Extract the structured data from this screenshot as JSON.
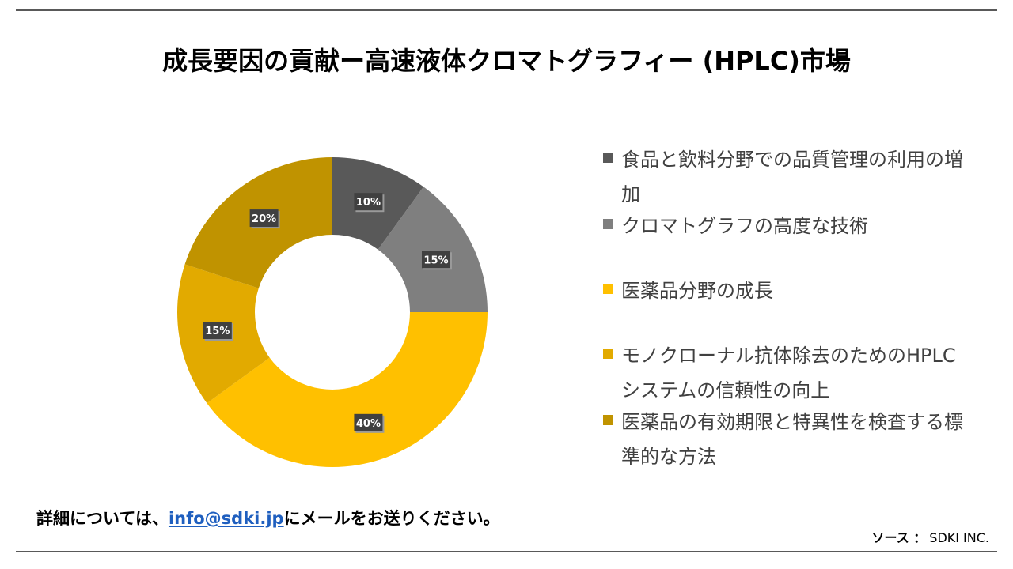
{
  "title": "成長要因の貢献ー高速液体クロマトグラフィー (HPLC)市場",
  "chart_data": {
    "type": "pie",
    "title": "成長要因の貢献ー高速液体クロマトグラフィー (HPLC)市場",
    "donut": true,
    "legend_position": "right",
    "slices": [
      {
        "label": "食品と飲料分野での品質管理の利用の増加",
        "value": 10,
        "data_label": "10%",
        "color": "#595959"
      },
      {
        "label": "クロマトグラフの高度な技術",
        "value": 15,
        "data_label": "15%",
        "color": "#7f7f7f"
      },
      {
        "label": "医薬品分野の成長",
        "value": 40,
        "data_label": "40%",
        "color": "#ffc000"
      },
      {
        "label": "モノクローナル抗体除去のためのHPLC システムの信頼性の向上",
        "value": 15,
        "data_label": "15%",
        "color": "#e2aa00"
      },
      {
        "label": "医薬品の有効期限と特異性を検査する標準的な方法",
        "value": 20,
        "data_label": "20%",
        "color": "#c09300"
      }
    ]
  },
  "footer": {
    "prefix": "詳細については、",
    "email": "info@sdki.jp",
    "suffix": "にメールをお送りください。"
  },
  "source": {
    "label": "ソース ：",
    "value": "SDKI INC."
  }
}
